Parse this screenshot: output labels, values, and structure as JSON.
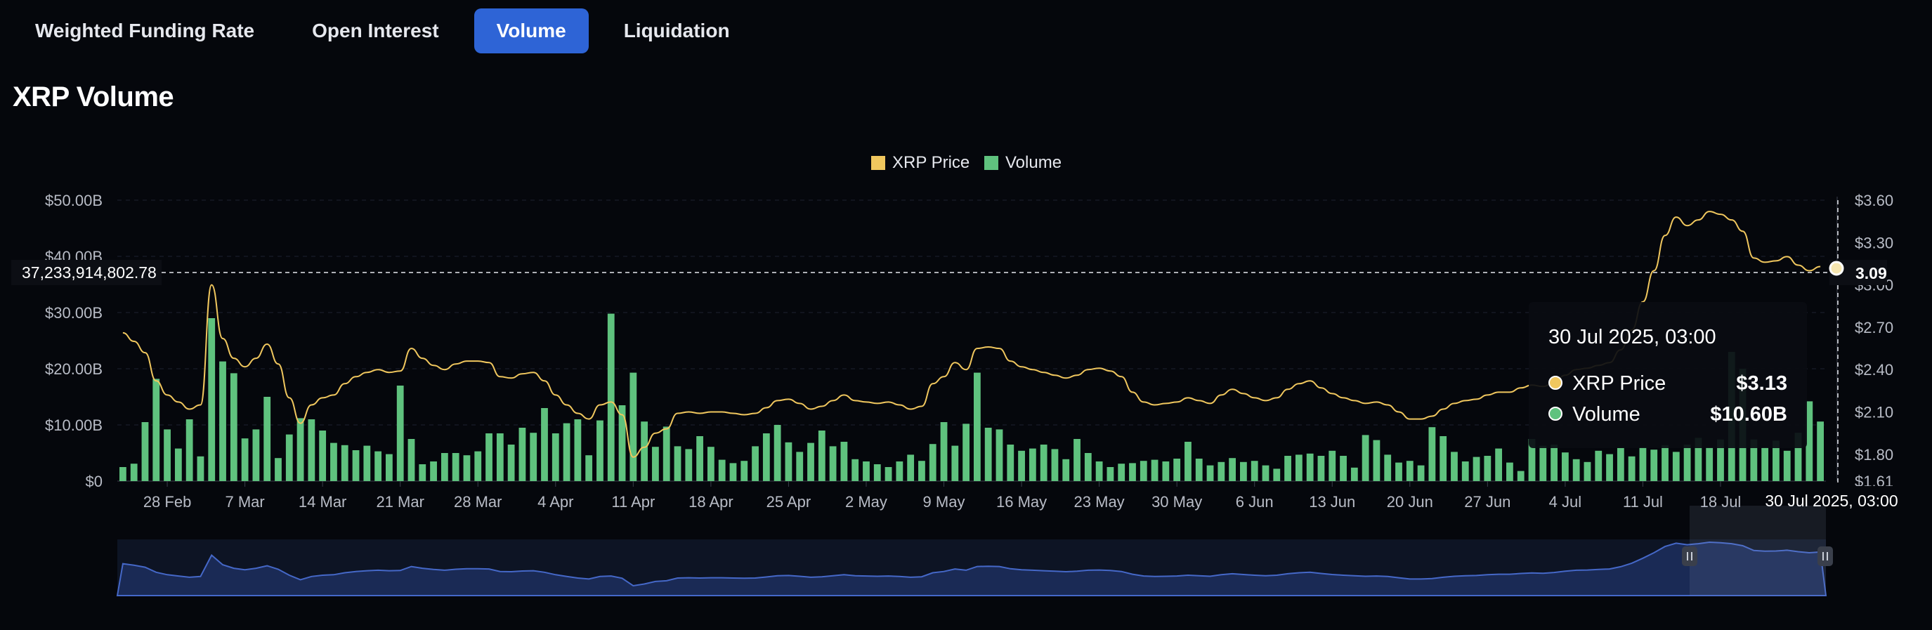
{
  "tabs": [
    {
      "label": "Weighted Funding Rate",
      "active": false
    },
    {
      "label": "Open Interest",
      "active": false
    },
    {
      "label": "Volume",
      "active": true
    },
    {
      "label": "Liquidation",
      "active": false
    }
  ],
  "page_title": "XRP Volume",
  "crosshair": {
    "y_value_label": "37,233,914,802.78",
    "price_label": "3.09",
    "time_label": "30 Jul 2025, 03:00"
  },
  "tooltip": {
    "time": "30 Jul 2025, 03:00",
    "price_label": "XRP Price",
    "price_value": "$3.13",
    "volume_label": "Volume",
    "volume_value": "$10.60B"
  },
  "chart_data": {
    "type": "bar",
    "title": "XRP Volume",
    "legend": [
      {
        "name": "XRP Price",
        "color": "#f0c75e"
      },
      {
        "name": "Volume",
        "color": "#5fc27e"
      }
    ],
    "legend_position": "top-center",
    "grid": true,
    "x_tick_labels": [
      "28 Feb",
      "7 Mar",
      "14 Mar",
      "21 Mar",
      "28 Mar",
      "4 Apr",
      "11 Apr",
      "18 Apr",
      "25 Apr",
      "2 May",
      "9 May",
      "16 May",
      "23 May",
      "30 May",
      "6 Jun",
      "13 Jun",
      "20 Jun",
      "27 Jun",
      "4 Jul",
      "11 Jul",
      "18 Jul"
    ],
    "x_tick_index": [
      4,
      11,
      18,
      25,
      32,
      39,
      46,
      53,
      60,
      67,
      74,
      81,
      88,
      95,
      102,
      109,
      116,
      123,
      130,
      137,
      144
    ],
    "y_left": {
      "ticks": [
        "$0",
        "$10.00B",
        "$20.00B",
        "$30.00B",
        "$40.00B",
        "$50.00B"
      ],
      "min": 0,
      "max": 50
    },
    "y_right": {
      "ticks": [
        "$1.61",
        "$1.80",
        "$2.10",
        "$2.40",
        "$2.70",
        "$3.00",
        "$3.30",
        "$3.60"
      ],
      "values": [
        1.61,
        1.8,
        2.1,
        2.4,
        2.7,
        3.0,
        3.3,
        3.6
      ],
      "min": 1.61,
      "max": 3.6
    },
    "series": [
      {
        "name": "Volume",
        "unit": "billion USD",
        "color": "#5fc27e",
        "values": [
          2.5,
          3.1,
          10.5,
          18.2,
          9.2,
          5.8,
          11.0,
          4.4,
          29.0,
          21.3,
          19.2,
          7.6,
          9.2,
          15.0,
          4.1,
          8.3,
          11.2,
          11.0,
          9.0,
          6.8,
          6.4,
          5.5,
          6.3,
          5.3,
          4.8,
          17.0,
          7.5,
          3.0,
          3.5,
          5.0,
          5.0,
          4.6,
          5.3,
          8.5,
          8.5,
          6.5,
          9.5,
          8.6,
          13.0,
          8.5,
          10.3,
          11.0,
          4.6,
          10.8,
          29.8,
          13.5,
          19.3,
          10.6,
          6.1,
          9.7,
          6.2,
          5.7,
          8.0,
          6.1,
          3.8,
          3.2,
          3.6,
          6.2,
          8.5,
          10.0,
          6.9,
          5.2,
          6.8,
          9.0,
          6.2,
          7.0,
          3.9,
          3.5,
          3.0,
          2.5,
          3.5,
          4.7,
          3.6,
          6.6,
          10.5,
          6.3,
          10.2,
          19.3,
          9.5,
          9.2,
          6.5,
          5.4,
          5.8,
          6.5,
          5.7,
          3.9,
          7.5,
          5.0,
          3.5,
          2.5,
          3.1,
          3.2,
          3.6,
          3.8,
          3.5,
          4.0,
          7.0,
          4.0,
          2.8,
          3.4,
          4.1,
          3.4,
          3.6,
          2.8,
          2.2,
          4.5,
          4.7,
          4.9,
          4.5,
          5.4,
          4.5,
          2.4,
          8.2,
          7.3,
          4.7,
          3.3,
          3.6,
          2.8,
          9.6,
          8.0,
          5.2,
          3.5,
          4.3,
          4.5,
          5.8,
          3.3,
          1.8,
          7.5,
          6.3,
          6.5,
          5.1,
          3.9,
          3.4,
          5.4,
          4.8,
          5.9,
          4.4,
          6.0,
          5.6,
          6.4,
          5.2,
          6.5,
          7.7,
          6.0,
          7.4,
          23.0,
          20.0,
          7.4,
          6.0,
          7.2,
          5.4,
          8.6,
          14.2,
          10.6
        ]
      },
      {
        "name": "XRP Price",
        "unit": "USD",
        "color": "#f0c75e",
        "values": [
          2.66,
          2.6,
          2.52,
          2.32,
          2.22,
          2.17,
          2.12,
          2.15,
          3.0,
          2.62,
          2.48,
          2.42,
          2.48,
          2.58,
          2.44,
          2.2,
          2.02,
          2.15,
          2.2,
          2.22,
          2.3,
          2.35,
          2.38,
          2.4,
          2.38,
          2.39,
          2.55,
          2.48,
          2.43,
          2.4,
          2.44,
          2.46,
          2.46,
          2.45,
          2.35,
          2.34,
          2.37,
          2.38,
          2.32,
          2.22,
          2.15,
          2.09,
          2.05,
          2.15,
          2.17,
          2.08,
          1.78,
          1.85,
          1.95,
          1.98,
          2.09,
          2.1,
          2.09,
          2.1,
          2.1,
          2.09,
          2.08,
          2.09,
          2.13,
          2.18,
          2.19,
          2.16,
          2.12,
          2.14,
          2.18,
          2.22,
          2.18,
          2.17,
          2.16,
          2.17,
          2.15,
          2.12,
          2.14,
          2.3,
          2.35,
          2.45,
          2.4,
          2.55,
          2.56,
          2.55,
          2.46,
          2.42,
          2.4,
          2.38,
          2.36,
          2.34,
          2.36,
          2.4,
          2.41,
          2.39,
          2.35,
          2.24,
          2.17,
          2.15,
          2.16,
          2.17,
          2.2,
          2.18,
          2.16,
          2.22,
          2.26,
          2.23,
          2.2,
          2.18,
          2.2,
          2.26,
          2.3,
          2.32,
          2.27,
          2.23,
          2.2,
          2.18,
          2.16,
          2.17,
          2.15,
          2.1,
          2.05,
          2.05,
          2.07,
          2.12,
          2.16,
          2.18,
          2.19,
          2.22,
          2.24,
          2.24,
          2.27,
          2.29,
          2.28,
          2.31,
          2.36,
          2.4,
          2.41,
          2.43,
          2.45,
          2.54,
          2.68,
          2.88,
          3.1,
          3.35,
          3.48,
          3.42,
          3.46,
          3.52,
          3.5,
          3.46,
          3.38,
          3.19,
          3.16,
          3.17,
          3.2,
          3.14,
          3.1,
          3.13
        ]
      }
    ]
  }
}
